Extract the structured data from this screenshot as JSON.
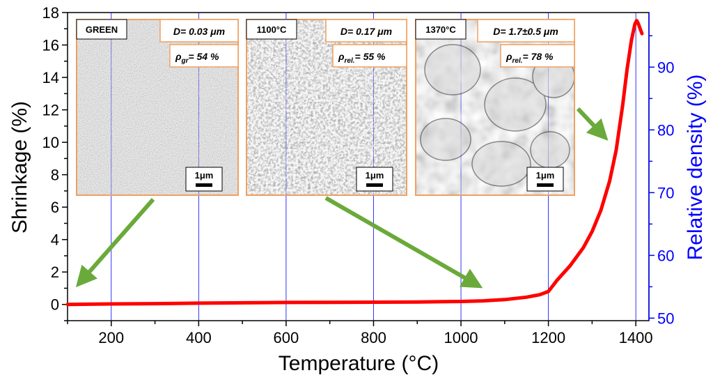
{
  "chart_data": {
    "type": "line",
    "xlabel": "Temperature (°C)",
    "ylabel": "Shrinkage (%)",
    "y2label": "Relative density (%)",
    "xlim": [
      100,
      1430
    ],
    "ylim": [
      -1,
      18
    ],
    "y2lim": [
      49.6,
      98.7
    ],
    "xticks": [
      200,
      400,
      600,
      800,
      1000,
      1200,
      1400
    ],
    "yticks": [
      0,
      2,
      4,
      6,
      8,
      10,
      12,
      14,
      16,
      18
    ],
    "y2ticks": [
      50,
      60,
      70,
      80,
      90
    ],
    "grid": "vertical lines at x ticks",
    "series": [
      {
        "color": "#ff0000",
        "x": [
          100,
          200,
          300,
          400,
          500,
          600,
          700,
          800,
          900,
          1000,
          1050,
          1100,
          1150,
          1180,
          1200,
          1220,
          1250,
          1280,
          1300,
          1320,
          1340,
          1355,
          1370,
          1380,
          1390,
          1398,
          1402,
          1406,
          1410,
          1414
        ],
        "y": [
          0.0,
          0.03,
          0.05,
          0.08,
          0.1,
          0.12,
          0.13,
          0.14,
          0.15,
          0.18,
          0.22,
          0.3,
          0.45,
          0.6,
          0.8,
          1.5,
          2.4,
          3.5,
          4.5,
          5.8,
          7.6,
          9.5,
          12.3,
          14.5,
          16.3,
          17.3,
          17.5,
          17.3,
          17.0,
          16.7
        ]
      }
    ]
  },
  "insets": [
    {
      "label": "GREEN",
      "diameter": "D= 0.03 μm",
      "density_symbol": "ρ",
      "density_sub": "gr",
      "density_value": "= 54 %",
      "scale": "1μm",
      "texture": "green"
    },
    {
      "label": "1100°C",
      "diameter": "D= 0.17 μm",
      "density_symbol": "ρ",
      "density_sub": "rel.",
      "density_value": "= 55 %",
      "scale": "1μm",
      "texture": "mid"
    },
    {
      "label": "1370°C",
      "diameter": "D= 1.7±0.5 μm",
      "density_symbol": "ρ",
      "density_sub": "rel.",
      "density_value": "= 78 %",
      "scale": "1μm",
      "texture": "large"
    }
  ],
  "colors": {
    "curve": "#ff0000",
    "grid": "#0000ff",
    "right_axis": "#0000ff",
    "arrow": "#6aaa3a",
    "inset_border": "#f0a060"
  }
}
